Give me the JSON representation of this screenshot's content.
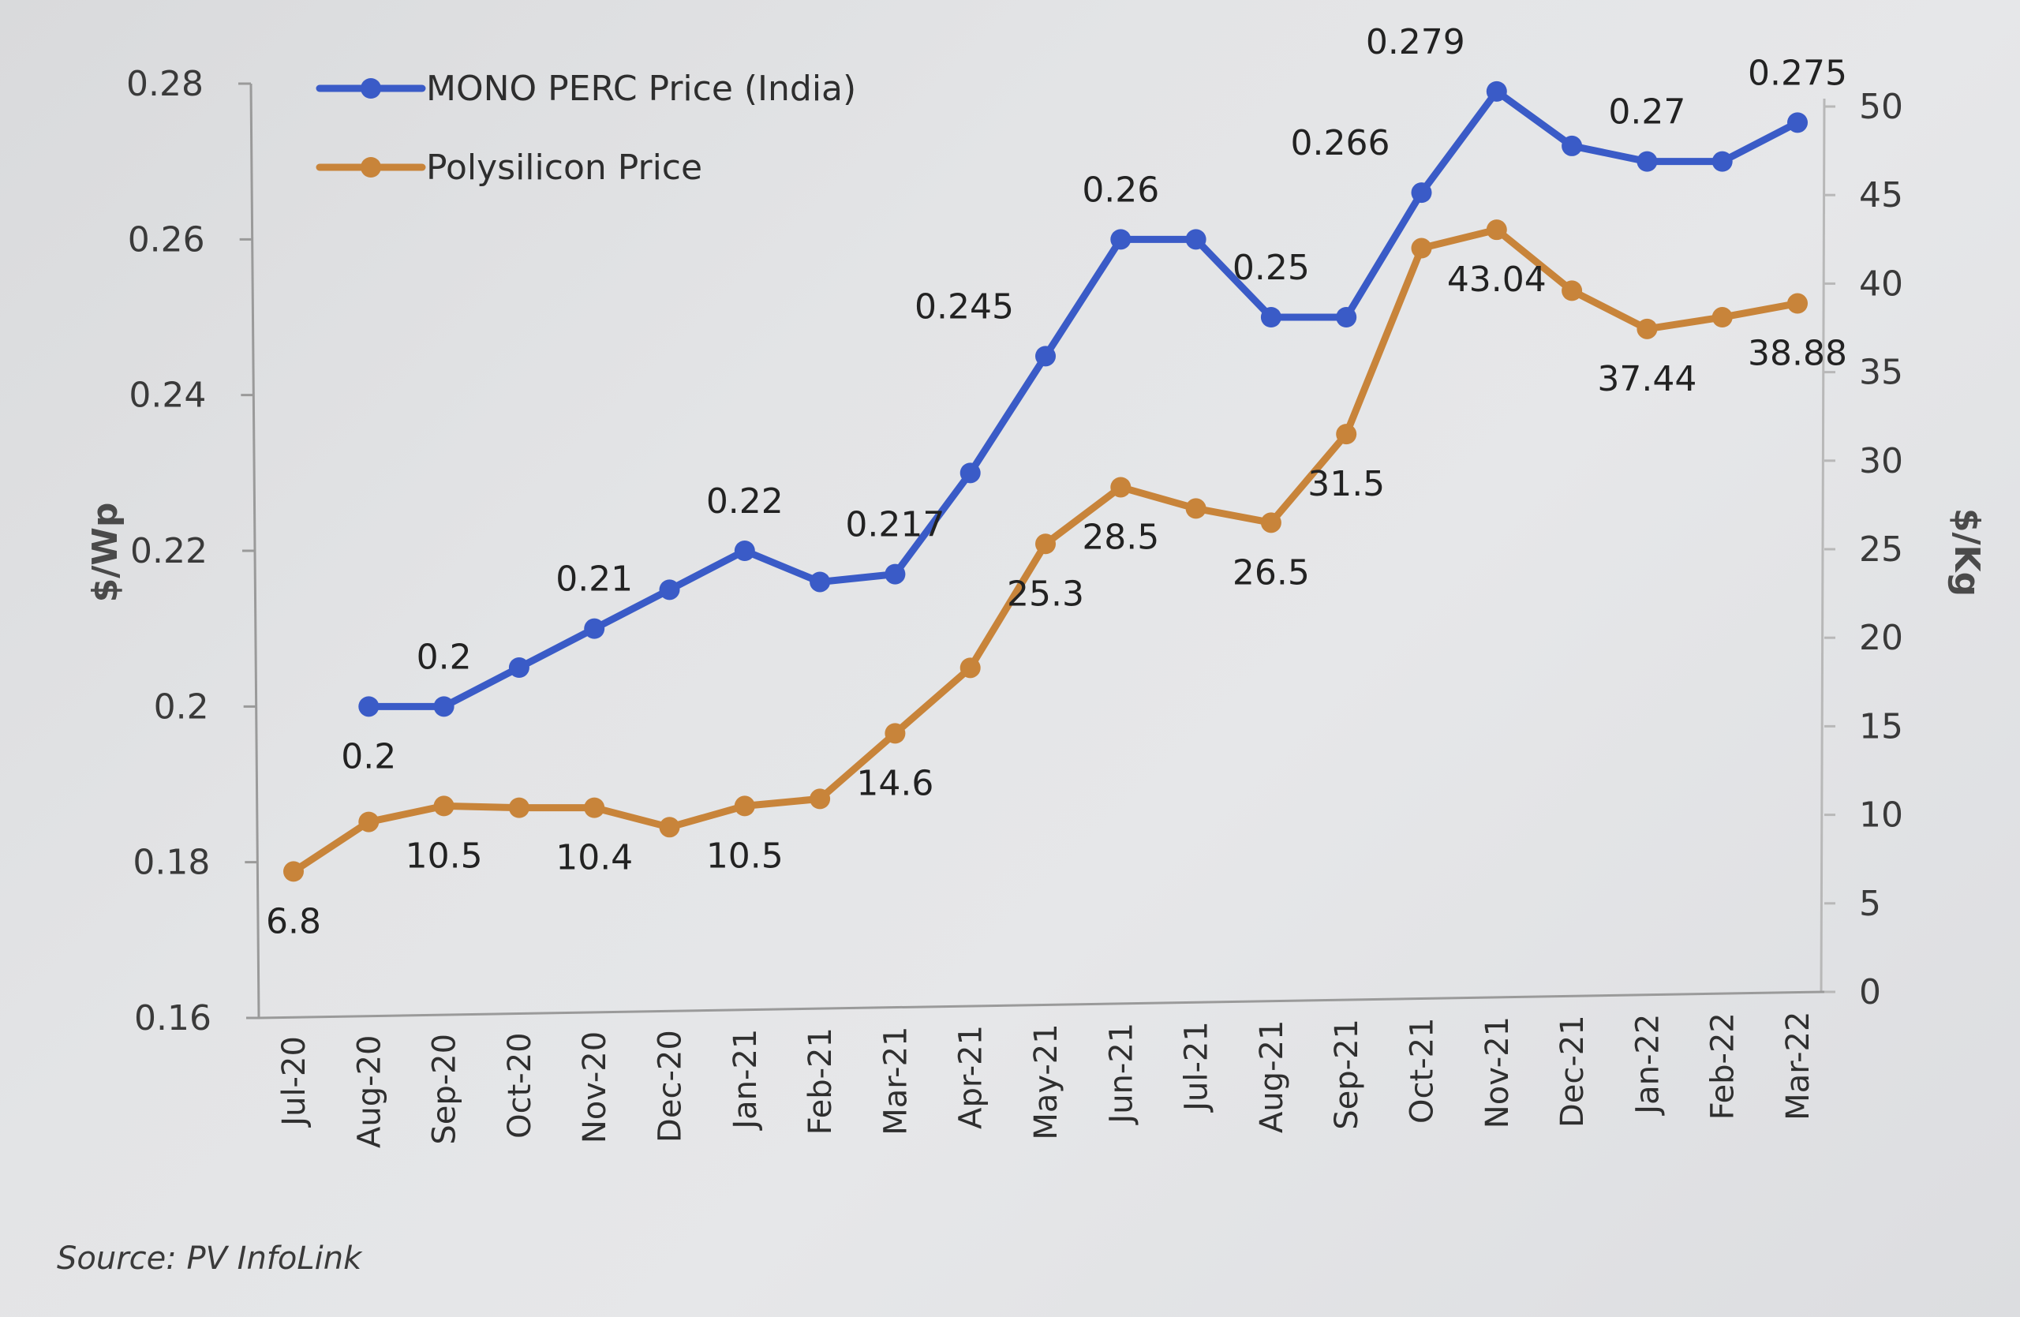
{
  "source_text": "Source: PV InfoLink",
  "colors": {
    "mono_perc": "#3a5bc7",
    "polysilicon": "#c8843a",
    "axis": "#9a9a9a",
    "background": "#e3e4e6"
  },
  "chart_data": {
    "type": "line",
    "title": "",
    "xlabel": "",
    "ylabel": "$/Wp",
    "ylabel_right": "$/Kg",
    "ylim": [
      0.16,
      0.28
    ],
    "ylim_right": [
      0,
      50
    ],
    "yticks": [
      "0.28",
      "0.26",
      "0.24",
      "0.22",
      "0.2",
      "0.18",
      "0.16"
    ],
    "yticks_right": [
      "50",
      "45",
      "40",
      "35",
      "30",
      "25",
      "20",
      "15",
      "10",
      "5",
      "0"
    ],
    "grid": false,
    "legend_position": "top-left",
    "categories": [
      "Jul-20",
      "Aug-20",
      "Sep-20",
      "Oct-20",
      "Nov-20",
      "Dec-20",
      "Jan-21",
      "Feb-21",
      "Mar-21",
      "Apr-21",
      "May-21",
      "Jun-21",
      "Jul-21",
      "Aug-21",
      "Sep-21",
      "Oct-21",
      "Nov-21",
      "Dec-21",
      "Jan-22",
      "Feb-22",
      "Mar-22"
    ],
    "series": [
      {
        "name": "MONO PERC Price (India)",
        "axis": "left",
        "color": "#3a5bc7",
        "values": [
          null,
          0.2,
          0.2,
          0.205,
          0.21,
          0.215,
          0.22,
          0.216,
          0.217,
          0.23,
          0.245,
          0.26,
          0.26,
          0.25,
          0.25,
          0.266,
          0.279,
          0.272,
          0.27,
          0.27,
          0.275
        ],
        "labels": [
          {
            "index": 1,
            "text": "0.2",
            "pos": "below"
          },
          {
            "index": 2,
            "text": "0.2",
            "pos": "above"
          },
          {
            "index": 4,
            "text": "0.21",
            "pos": "above"
          },
          {
            "index": 6,
            "text": "0.22",
            "pos": "above"
          },
          {
            "index": 8,
            "text": "0.217",
            "pos": "above"
          },
          {
            "index": 10,
            "text": "0.245",
            "pos": "above-left"
          },
          {
            "index": 11,
            "text": "0.26",
            "pos": "above"
          },
          {
            "index": 13,
            "text": "0.25",
            "pos": "above"
          },
          {
            "index": 15,
            "text": "0.266",
            "pos": "above-left"
          },
          {
            "index": 16,
            "text": "0.279",
            "pos": "above-left"
          },
          {
            "index": 18,
            "text": "0.27",
            "pos": "above"
          },
          {
            "index": 20,
            "text": "0.275",
            "pos": "above"
          }
        ]
      },
      {
        "name": "Polysilicon Price",
        "axis": "right",
        "color": "#c8843a",
        "values": [
          6.8,
          9.6,
          10.5,
          10.4,
          10.4,
          9.3,
          10.5,
          10.9,
          14.6,
          18.3,
          25.3,
          28.5,
          27.3,
          26.5,
          31.5,
          42.0,
          43.04,
          39.6,
          37.44,
          38.1,
          38.88
        ],
        "labels": [
          {
            "index": 0,
            "text": "6.8",
            "pos": "below"
          },
          {
            "index": 2,
            "text": "10.5",
            "pos": "below"
          },
          {
            "index": 4,
            "text": "10.4",
            "pos": "below"
          },
          {
            "index": 6,
            "text": "10.5",
            "pos": "below"
          },
          {
            "index": 8,
            "text": "14.6",
            "pos": "below"
          },
          {
            "index": 10,
            "text": "25.3",
            "pos": "below"
          },
          {
            "index": 11,
            "text": "28.5",
            "pos": "below"
          },
          {
            "index": 13,
            "text": "26.5",
            "pos": "below"
          },
          {
            "index": 14,
            "text": "31.5",
            "pos": "below"
          },
          {
            "index": 16,
            "text": "43.04",
            "pos": "below"
          },
          {
            "index": 18,
            "text": "37.44",
            "pos": "below"
          },
          {
            "index": 20,
            "text": "38.88",
            "pos": "below"
          }
        ]
      }
    ]
  }
}
